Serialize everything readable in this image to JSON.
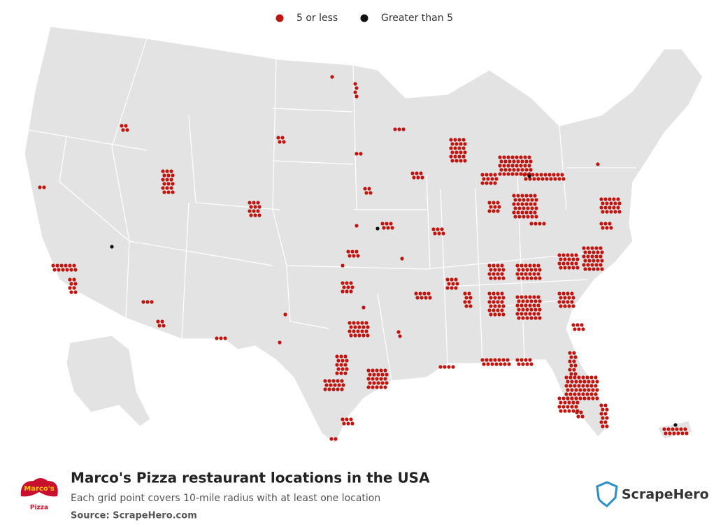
{
  "legend": [
    {
      "label": "5 or less",
      "color": "#c0150f"
    },
    {
      "label": "Greater than 5",
      "color": "#111111"
    }
  ],
  "footer": {
    "title": "Marco's Pizza restaurant locations in the USA",
    "subtitle": "Each grid point covers 10-mile radius with at least one location",
    "source": "Source: ScrapeHero.com"
  },
  "logo": {
    "top": "Marco's",
    "bottom": "Pizza"
  },
  "brand": "ScrapeHero"
}
